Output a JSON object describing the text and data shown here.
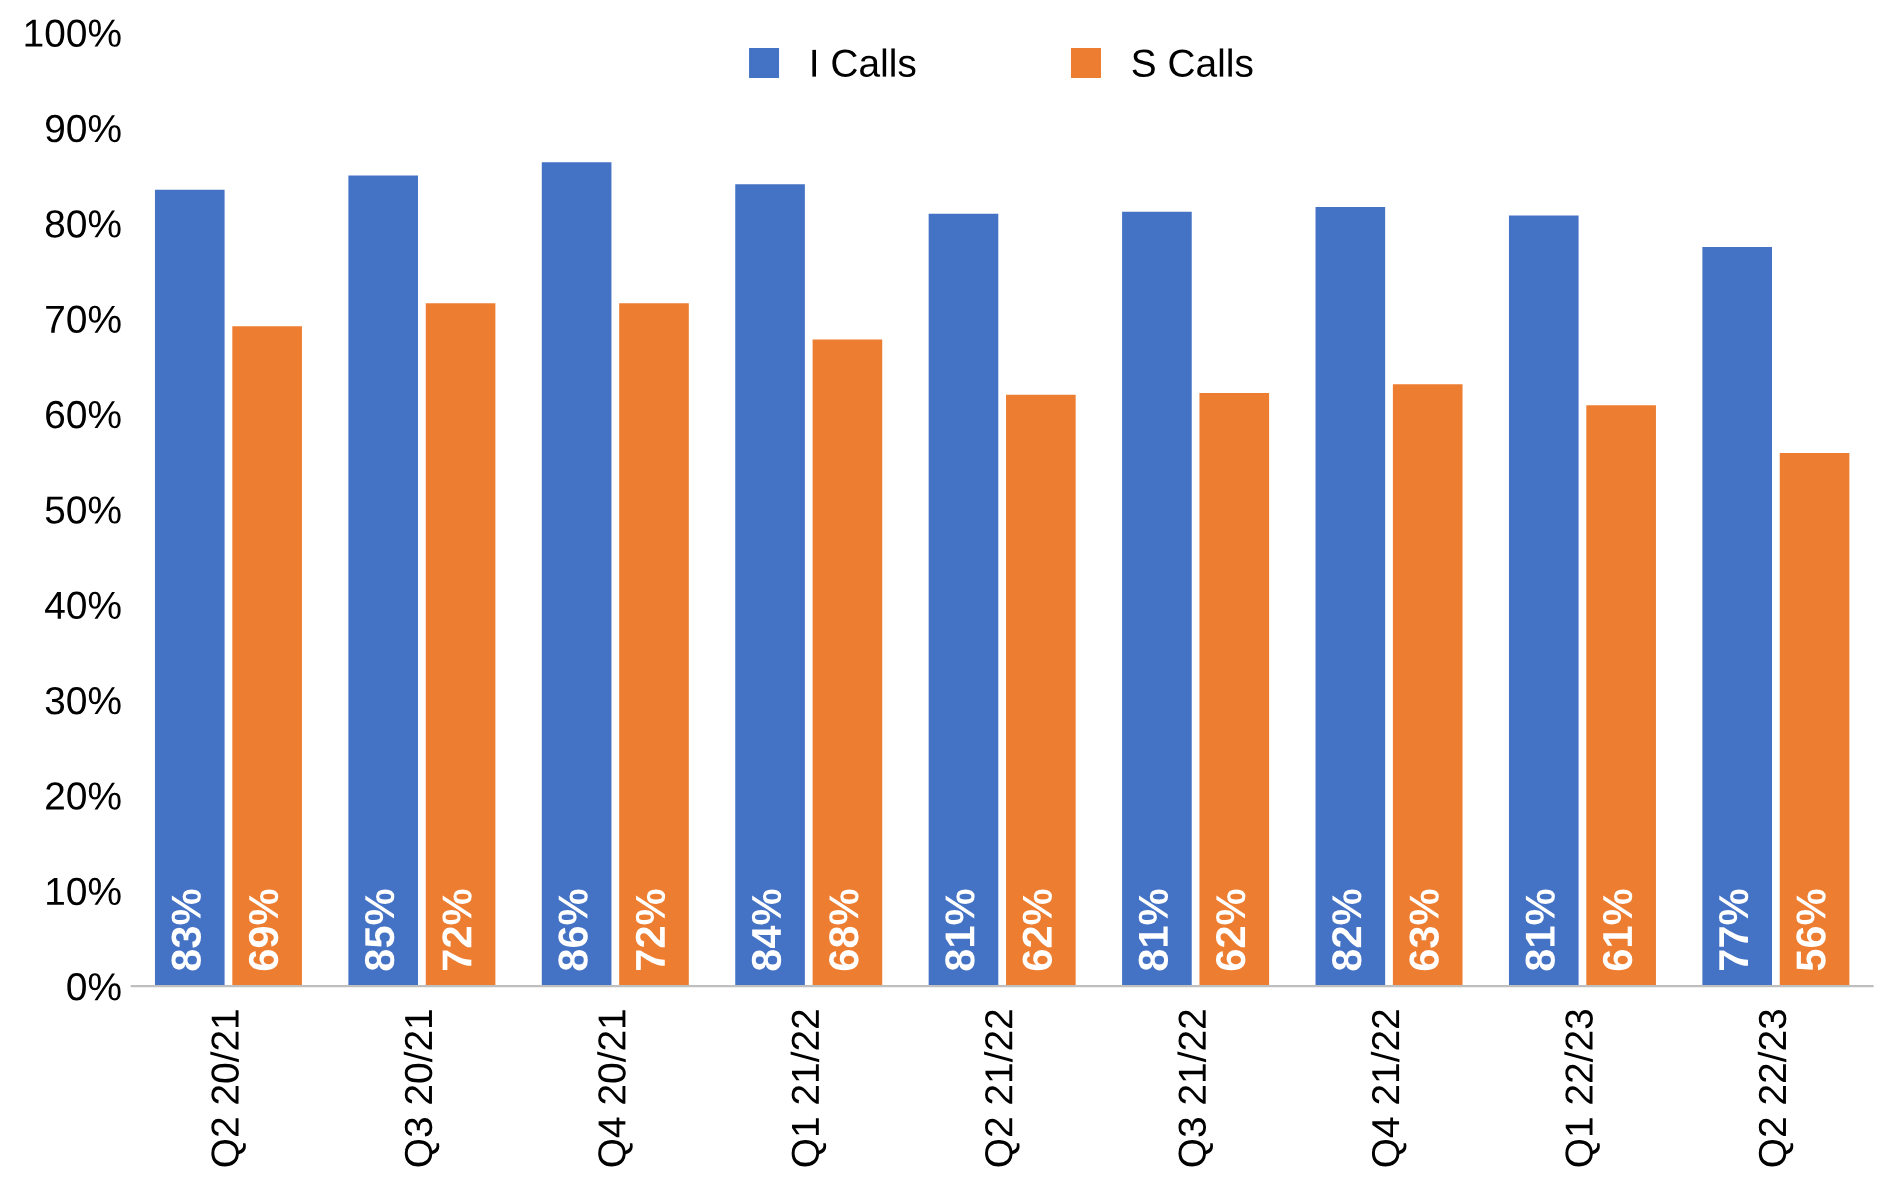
{
  "chart_data": {
    "type": "bar",
    "categories": [
      "Q2 20/21",
      "Q3 20/21",
      "Q4 20/21",
      "Q1 21/22",
      "Q2 21/22",
      "Q3 21/22",
      "Q4 21/22",
      "Q1 22/23",
      "Q2 22/23"
    ],
    "series": [
      {
        "name": "I Calls",
        "color": "#4472c4",
        "values": [
          83.5,
          85,
          86.4,
          84.1,
          81,
          81.2,
          81.7,
          80.8,
          77.5
        ],
        "value_labels": [
          "83%",
          "85%",
          "86%",
          "84%",
          "81%",
          "81%",
          "82%",
          "81%",
          "77%"
        ]
      },
      {
        "name": "S Calls",
        "color": "#ed7d31",
        "values": [
          69.2,
          71.6,
          71.6,
          67.8,
          62,
          62.2,
          63.1,
          60.9,
          55.9
        ],
        "value_labels": [
          "69%",
          "72%",
          "72%",
          "68%",
          "62%",
          "62%",
          "63%",
          "61%",
          "56%"
        ]
      }
    ],
    "ylim": [
      0,
      100
    ],
    "yticks": [
      {
        "value": 0,
        "label": "0%"
      },
      {
        "value": 10,
        "label": "10%"
      },
      {
        "value": 20,
        "label": "20%"
      },
      {
        "value": 30,
        "label": "30%"
      },
      {
        "value": 40,
        "label": "40%"
      },
      {
        "value": 50,
        "label": "50%"
      },
      {
        "value": 60,
        "label": "60%"
      },
      {
        "value": 70,
        "label": "70%"
      },
      {
        "value": 80,
        "label": "80%"
      },
      {
        "value": 90,
        "label": "90%"
      },
      {
        "value": 100,
        "label": "100%"
      }
    ],
    "legend": "top",
    "grid": false
  }
}
